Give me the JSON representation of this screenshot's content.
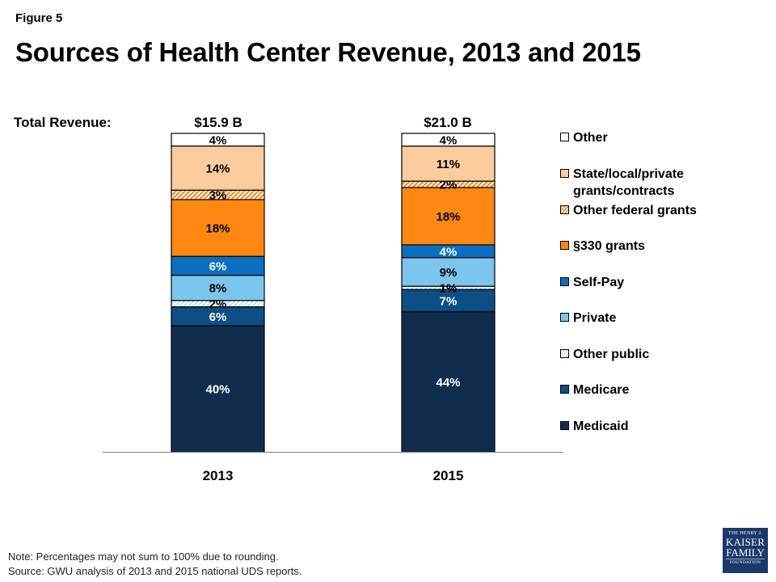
{
  "figure_label": "Figure 5",
  "title": "Sources of Health Center Revenue, 2013 and 2015",
  "total_revenue_label": "Total Revenue:",
  "note": "Note: Percentages may not sum to 100% due to rounding.",
  "source": "Source: GWU analysis of 2013 and 2015 national UDS reports.",
  "logo": {
    "line1": "THE HENRY J.",
    "line2": "KAISER",
    "line3": "FAMILY",
    "line4": "FOUNDATION"
  },
  "chart_data": {
    "type": "bar",
    "stacked": true,
    "title": "Sources of Health Center Revenue, 2013 and 2015",
    "xlabel": "",
    "ylabel": "",
    "categories": [
      "2013",
      "2015"
    ],
    "totals": [
      "$15.9 B",
      "$21.0 B"
    ],
    "grid": false,
    "legend_position": "right",
    "series": [
      {
        "name": "Medicaid",
        "values": [
          40,
          44
        ],
        "labels": [
          "40%",
          "44%"
        ],
        "color": "#112d4e",
        "pattern": "solid",
        "label_color": "#ffffff"
      },
      {
        "name": "Medicare",
        "values": [
          6,
          7
        ],
        "labels": [
          "6%",
          "7%"
        ],
        "color": "#0b4f85",
        "pattern": "solid",
        "label_color": "#ffffff"
      },
      {
        "name": "Other public",
        "values": [
          2,
          1
        ],
        "labels": [
          "2%",
          "1%"
        ],
        "color": "#c9e1f2",
        "pattern": "hatch-light",
        "label_color": "#000000"
      },
      {
        "name": "Private",
        "values": [
          8,
          9
        ],
        "labels": [
          "8%",
          "9%"
        ],
        "color": "#7cc5ec",
        "pattern": "solid",
        "label_color": "#000000"
      },
      {
        "name": "Self-Pay",
        "values": [
          6,
          4
        ],
        "labels": [
          "6%",
          "4%"
        ],
        "color": "#0a6fbf",
        "pattern": "solid",
        "label_color": "#ffffff"
      },
      {
        "name": "§330 grants",
        "values": [
          18,
          18
        ],
        "labels": [
          "18%",
          "18%"
        ],
        "color": "#ff8712",
        "pattern": "solid",
        "label_color": "#000000"
      },
      {
        "name": "Other federal grants",
        "values": [
          3,
          2
        ],
        "labels": [
          "3%",
          "2%"
        ],
        "color": "#ff8712",
        "pattern": "hatch-orange",
        "label_color": "#000000"
      },
      {
        "name": "State/local/private grants/contracts",
        "values": [
          14,
          11
        ],
        "labels": [
          "14%",
          "11%"
        ],
        "color": "#fdcc9e",
        "pattern": "solid",
        "label_color": "#000000"
      },
      {
        "name": "Other",
        "values": [
          4,
          4
        ],
        "labels": [
          "4%",
          "4%"
        ],
        "color": "#ffffff",
        "pattern": "solid",
        "label_color": "#000000"
      }
    ],
    "legend": [
      {
        "label_lines": [
          "Other"
        ],
        "series": "Other"
      },
      {
        "label_lines": [
          "State/local/private",
          "grants/contracts"
        ],
        "series": "State/local/private grants/contracts"
      },
      {
        "label_lines": [
          "Other federal grants"
        ],
        "series": "Other federal grants"
      },
      {
        "label_lines": [
          "§330 grants"
        ],
        "series": "§330 grants"
      },
      {
        "label_lines": [
          "Self-Pay"
        ],
        "series": "Self-Pay"
      },
      {
        "label_lines": [
          "Private"
        ],
        "series": "Private"
      },
      {
        "label_lines": [
          "Other public"
        ],
        "series": "Other public"
      },
      {
        "label_lines": [
          "Medicare"
        ],
        "series": "Medicare"
      },
      {
        "label_lines": [
          "Medicaid"
        ],
        "series": "Medicaid"
      }
    ]
  }
}
